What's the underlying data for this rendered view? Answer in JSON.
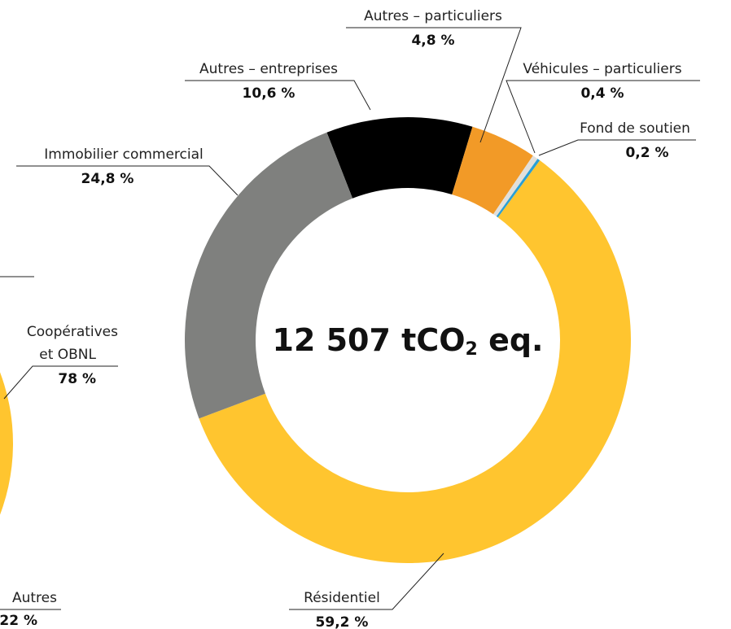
{
  "chart_data": [
    {
      "type": "donut",
      "center_label": {
        "main": "12 507 tCO",
        "sub": "2",
        "suffix": " eq."
      },
      "categories": [
        "Autres – entreprises",
        "Autres – particuliers",
        "Véhicules – particuliers",
        "Fond de soutien",
        "Résidentiel",
        "Immobilier commercial"
      ],
      "values": [
        10.6,
        4.8,
        0.4,
        0.2,
        59.2,
        24.8
      ],
      "value_labels": [
        "10,6 %",
        "4,8 %",
        "0,4 %",
        "0,2 %",
        "59,2 %",
        "24,8 %"
      ],
      "colors": [
        "#000000",
        "#f29a27",
        "#e2dfda",
        "#2a9fd6",
        "#ffc52f",
        "#7f807e"
      ]
    },
    {
      "type": "donut",
      "categories": [
        "Coopératives et OBNL",
        "Autres"
      ],
      "values": [
        78,
        22
      ],
      "value_labels": [
        "78 %",
        "22 %"
      ],
      "colors": [
        "#ffc52f",
        "#7f807e"
      ]
    }
  ]
}
